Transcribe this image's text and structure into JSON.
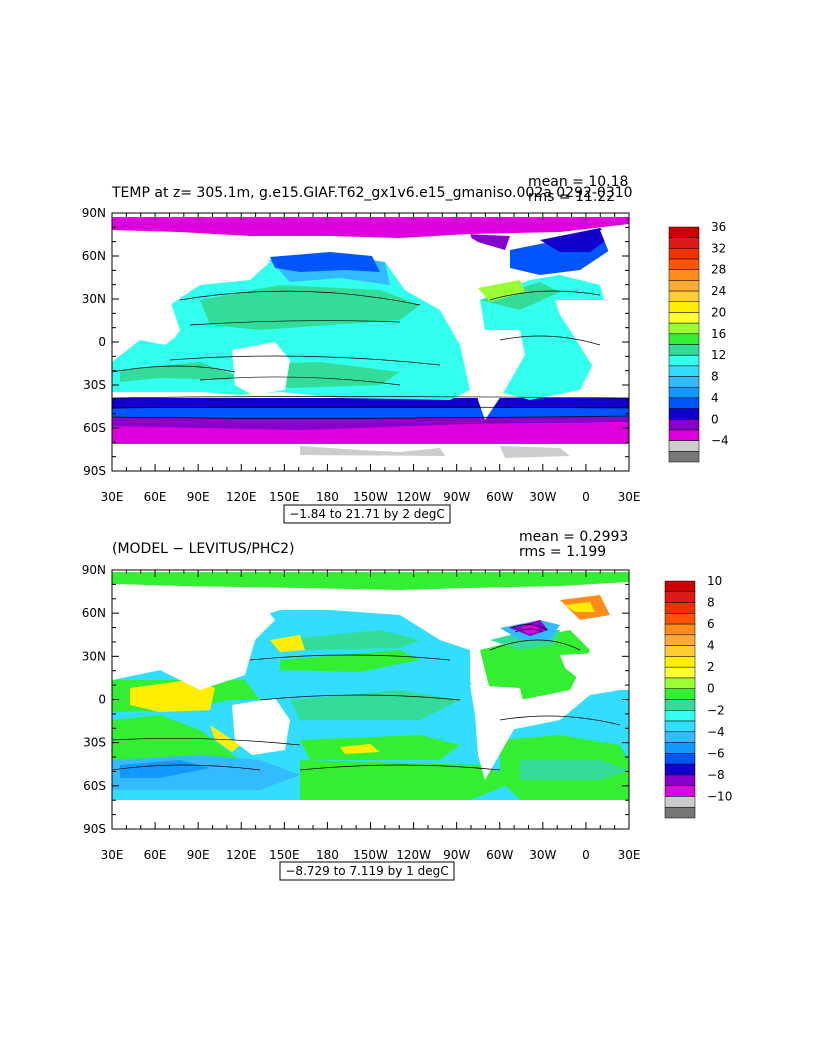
{
  "panels": [
    {
      "title": "TEMP at z= 305.1m, g.e15.GIAF.T62_gx1v6.e15_gmaniso.002a 0292-0310",
      "stats": {
        "mean": "mean = 10.18",
        "rms": "rms = 11.22"
      },
      "range_label": "−1.84 to 21.71 by 2 degC",
      "colorbar": {
        "labels": [
          "36",
          "32",
          "28",
          "24",
          "20",
          "16",
          "12",
          "8",
          "4",
          "0",
          "−4"
        ],
        "colors": [
          "#cc0000",
          "#dd1a1a",
          "#ee3300",
          "#ff5500",
          "#ff8c1a",
          "#ffaa33",
          "#ffcc33",
          "#ffee00",
          "#ffff33",
          "#99ff33",
          "#33ee33",
          "#33dd99",
          "#33ffee",
          "#33ddff",
          "#33bbff",
          "#1199ff",
          "#0055ff",
          "#1100cc",
          "#8800cc",
          "#dd00dd",
          "#cccccc",
          "#777777"
        ]
      }
    },
    {
      "title": "(MODEL − LEVITUS/PHC2)",
      "stats": {
        "mean": "mean = 0.2993",
        "rms": "rms = 1.199"
      },
      "range_label": "−8.729 to 7.119 by 1 degC",
      "colorbar": {
        "labels": [
          "10",
          "8",
          "6",
          "4",
          "2",
          "0",
          "−2",
          "−4",
          "−6",
          "−8",
          "−10"
        ],
        "colors": [
          "#cc0000",
          "#dd1a1a",
          "#ee3300",
          "#ff5500",
          "#ff8c1a",
          "#ffaa33",
          "#ffcc33",
          "#ffee00",
          "#ffff33",
          "#99ff33",
          "#33ee33",
          "#33dd99",
          "#33ffee",
          "#33ddff",
          "#33bbff",
          "#1199ff",
          "#0055ff",
          "#1100cc",
          "#8800cc",
          "#dd00dd",
          "#cccccc",
          "#777777"
        ]
      }
    }
  ],
  "lat_ticks": [
    "90N",
    "60N",
    "30N",
    "0",
    "30S",
    "60S",
    "90S"
  ],
  "lon_ticks": [
    "30E",
    "60E",
    "90E",
    "120E",
    "150E",
    "180",
    "150W",
    "120W",
    "90W",
    "60W",
    "30W",
    "0",
    "30E"
  ]
}
